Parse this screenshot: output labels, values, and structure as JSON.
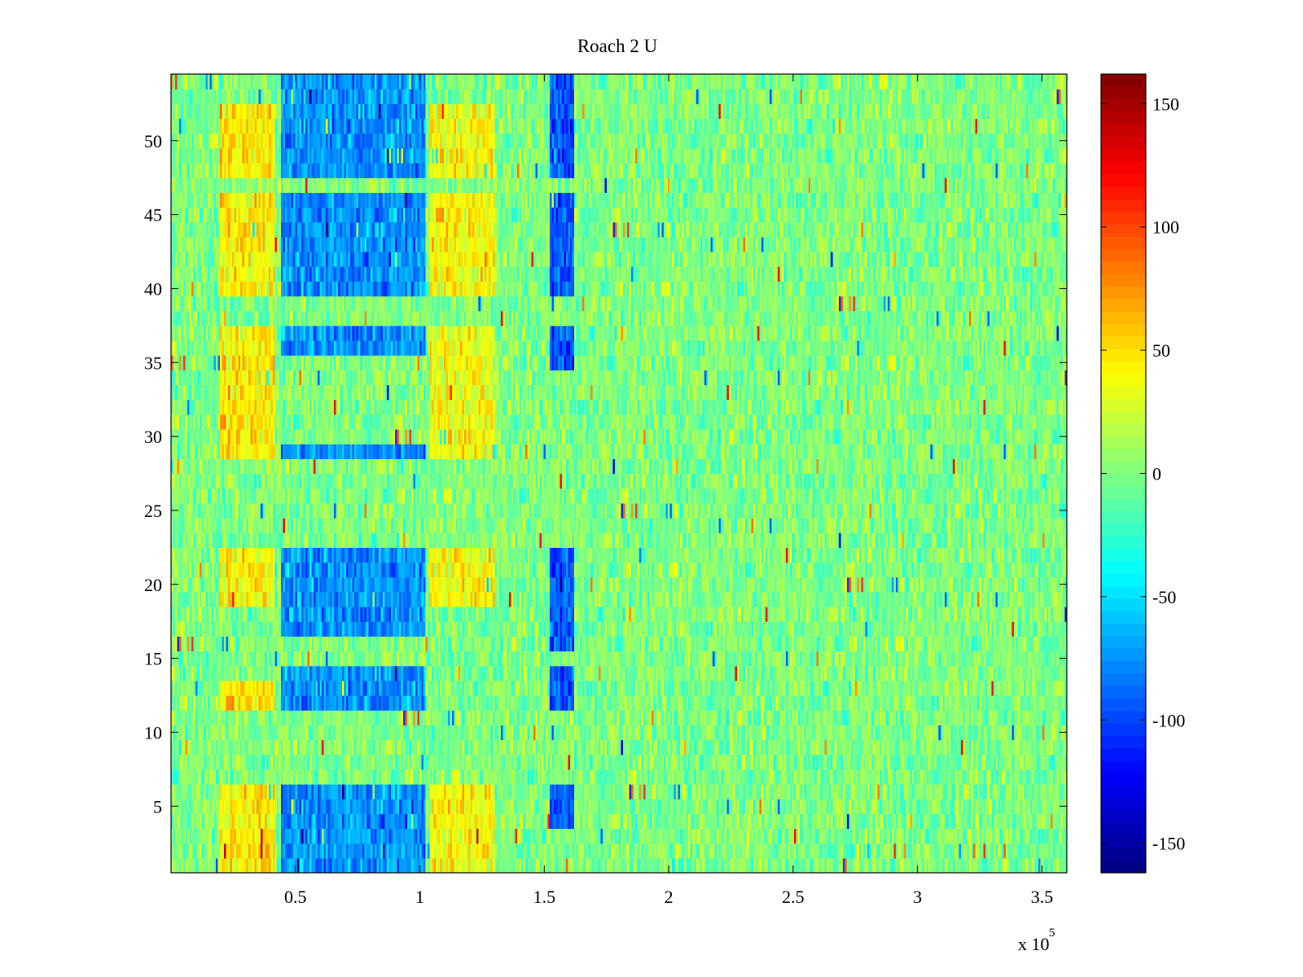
{
  "chart_data": {
    "type": "heatmap",
    "title": "Roach 2 U",
    "xlabel": "",
    "ylabel": "",
    "x_multiplier_label": {
      "base": "x 10",
      "exponent": "5"
    },
    "xlim": [
      0,
      3.6
    ],
    "ylim": [
      0.5,
      54.5
    ],
    "x_ticks": [
      0.5,
      1,
      1.5,
      2,
      2.5,
      3,
      3.5
    ],
    "x_tick_labels": [
      "0.5",
      "1",
      "1.5",
      "2",
      "2.5",
      "3",
      "3.5"
    ],
    "y_ticks": [
      5,
      10,
      15,
      20,
      25,
      30,
      35,
      40,
      45,
      50
    ],
    "y_tick_labels": [
      "5",
      "10",
      "15",
      "20",
      "25",
      "30",
      "35",
      "40",
      "45",
      "50"
    ],
    "rows": 54,
    "colorbar": {
      "colormap": "jet",
      "clim": [
        -162,
        162
      ],
      "ticks": [
        -150,
        -100,
        -50,
        0,
        50,
        100,
        150
      ],
      "tick_labels": [
        "-150",
        "-100",
        "-50",
        "0",
        "50",
        "100",
        "150"
      ]
    },
    "regions": [
      {
        "x_range": [
          0.2,
          0.42
        ],
        "rows": [
          [
            1,
            6
          ],
          [
            12,
            13
          ],
          [
            19,
            22
          ],
          [
            29,
            31
          ],
          [
            32,
            37
          ],
          [
            40,
            46
          ],
          [
            48,
            52
          ]
        ],
        "value": 45
      },
      {
        "x_range": [
          0.44,
          1.02
        ],
        "rows": [
          [
            1,
            6
          ],
          [
            12,
            14
          ],
          [
            17,
            18
          ],
          [
            19,
            22
          ],
          [
            29,
            29
          ],
          [
            36,
            37
          ],
          [
            40,
            46
          ],
          [
            48,
            54
          ]
        ],
        "value": -75
      },
      {
        "x_range": [
          1.04,
          1.3
        ],
        "rows": [
          [
            1,
            6
          ],
          [
            19,
            22
          ],
          [
            29,
            31
          ],
          [
            32,
            37
          ],
          [
            40,
            46
          ],
          [
            48,
            52
          ]
        ],
        "value": 40
      },
      {
        "x_range": [
          1.52,
          1.62
        ],
        "rows": [
          [
            4,
            6
          ],
          [
            12,
            14
          ],
          [
            16,
            22
          ],
          [
            35,
            37
          ],
          [
            40,
            46
          ],
          [
            48,
            54
          ]
        ],
        "value": -95
      }
    ],
    "background_value": 0
  }
}
